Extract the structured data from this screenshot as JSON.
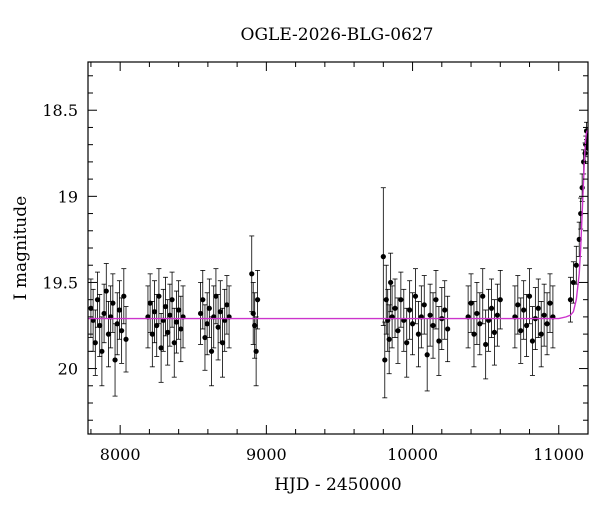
{
  "chart_data": {
    "type": "scatter",
    "title": "OGLE-2026-BLG-0627",
    "xlabel": "HJD - 2450000",
    "ylabel": "I magnitude",
    "xlim": [
      7780,
      11200
    ],
    "ylim": [
      20.38,
      18.22
    ],
    "y_inverted": true,
    "grid": false,
    "x_ticks": [
      {
        "value": 8000,
        "label": "8000"
      },
      {
        "value": 9000,
        "label": "9000"
      },
      {
        "value": 10000,
        "label": "10000"
      },
      {
        "value": 11000,
        "label": "11000"
      }
    ],
    "y_ticks": [
      {
        "value": 18.5,
        "label": "18.5"
      },
      {
        "value": 19,
        "label": "19"
      },
      {
        "value": 19.5,
        "label": "19.5"
      },
      {
        "value": 20,
        "label": "20"
      }
    ],
    "baseline_mag": 19.71,
    "model_color": "#cc33cc",
    "point_color": "#000000",
    "series": [
      {
        "type": "errorbar-scatter",
        "x": [
          7800,
          7815,
          7830,
          7845,
          7860,
          7875,
          7890,
          7905,
          7920,
          7935,
          7950,
          7965,
          7980,
          7995,
          8010,
          8025,
          8040,
          8190,
          8205,
          8220,
          8235,
          8250,
          8265,
          8280,
          8295,
          8310,
          8325,
          8340,
          8355,
          8370,
          8385,
          8400,
          8415,
          8430,
          8550,
          8565,
          8580,
          8595,
          8610,
          8625,
          8640,
          8655,
          8670,
          8685,
          8700,
          8715,
          8730,
          8745,
          8900,
          8910,
          8920,
          8930,
          8940,
          9800,
          9810,
          9820,
          9830,
          9840,
          9850,
          9860,
          9880,
          9900,
          9920,
          9940,
          9960,
          9980,
          10000,
          10020,
          10040,
          10060,
          10080,
          10100,
          10120,
          10140,
          10160,
          10180,
          10200,
          10220,
          10240,
          10380,
          10400,
          10420,
          10440,
          10460,
          10480,
          10500,
          10520,
          10540,
          10560,
          10580,
          10600,
          10700,
          10720,
          10740,
          10760,
          10780,
          10800,
          10820,
          10840,
          10860,
          10880,
          10900,
          10920,
          10940,
          10960,
          11080,
          11100,
          11120,
          11140,
          11150,
          11160,
          11170,
          11180,
          11185,
          11190,
          11195,
          11200
        ],
        "y": [
          19.65,
          19.72,
          19.85,
          19.6,
          19.75,
          19.9,
          19.68,
          19.55,
          19.8,
          19.7,
          19.62,
          19.95,
          19.74,
          19.66,
          19.78,
          19.58,
          19.83,
          19.7,
          19.62,
          19.8,
          19.67,
          19.75,
          19.58,
          19.88,
          19.72,
          19.64,
          19.79,
          19.69,
          19.6,
          19.85,
          19.73,
          19.66,
          19.77,
          19.7,
          19.68,
          19.6,
          19.82,
          19.74,
          19.65,
          19.9,
          19.7,
          19.58,
          19.76,
          19.67,
          19.85,
          19.72,
          19.63,
          19.7,
          19.45,
          19.68,
          19.75,
          19.9,
          19.6,
          19.35,
          19.95,
          19.6,
          19.72,
          19.83,
          19.5,
          19.7,
          19.65,
          19.78,
          19.6,
          19.72,
          19.85,
          19.66,
          19.74,
          19.58,
          19.8,
          19.7,
          19.63,
          19.92,
          19.69,
          19.75,
          19.6,
          19.84,
          19.71,
          19.66,
          19.77,
          19.7,
          19.62,
          19.8,
          19.68,
          19.74,
          19.58,
          19.86,
          19.72,
          19.65,
          19.79,
          19.69,
          19.6,
          19.7,
          19.63,
          19.78,
          19.66,
          19.75,
          19.58,
          19.84,
          19.71,
          19.65,
          19.8,
          19.69,
          19.74,
          19.62,
          19.7,
          19.6,
          19.5,
          19.4,
          19.25,
          19.1,
          18.95,
          18.8,
          18.75,
          18.7,
          18.62,
          18.68,
          18.72
        ],
        "yerr": [
          0.17,
          0.18,
          0.19,
          0.16,
          0.18,
          0.2,
          0.17,
          0.16,
          0.19,
          0.18,
          0.17,
          0.21,
          0.18,
          0.17,
          0.19,
          0.16,
          0.19,
          0.18,
          0.17,
          0.19,
          0.18,
          0.18,
          0.16,
          0.2,
          0.18,
          0.17,
          0.19,
          0.18,
          0.16,
          0.2,
          0.18,
          0.17,
          0.19,
          0.18,
          0.18,
          0.17,
          0.19,
          0.18,
          0.17,
          0.2,
          0.18,
          0.16,
          0.19,
          0.18,
          0.2,
          0.18,
          0.17,
          0.18,
          0.22,
          0.18,
          0.19,
          0.2,
          0.17,
          0.4,
          0.22,
          0.2,
          0.18,
          0.2,
          0.17,
          0.18,
          0.17,
          0.19,
          0.16,
          0.18,
          0.2,
          0.17,
          0.18,
          0.16,
          0.19,
          0.18,
          0.17,
          0.21,
          0.18,
          0.19,
          0.17,
          0.2,
          0.18,
          0.17,
          0.19,
          0.18,
          0.17,
          0.19,
          0.18,
          0.18,
          0.16,
          0.2,
          0.18,
          0.17,
          0.19,
          0.18,
          0.17,
          0.18,
          0.17,
          0.19,
          0.17,
          0.18,
          0.16,
          0.2,
          0.18,
          0.17,
          0.19,
          0.18,
          0.18,
          0.17,
          0.18,
          0.13,
          0.12,
          0.11,
          0.1,
          0.09,
          0.08,
          0.07,
          0.06,
          0.05,
          0.05,
          0.05,
          0.05
        ]
      },
      {
        "type": "model-line",
        "x": [
          7780,
          8000,
          8500,
          9000,
          9500,
          10000,
          10500,
          10900,
          11000,
          11050,
          11080,
          11100,
          11120,
          11140,
          11150,
          11160,
          11170,
          11175,
          11180,
          11185,
          11190,
          11195,
          11200
        ],
        "y": [
          19.71,
          19.71,
          19.71,
          19.71,
          19.71,
          19.71,
          19.71,
          19.71,
          19.71,
          19.7,
          19.69,
          19.67,
          19.6,
          19.45,
          19.3,
          19.1,
          18.9,
          18.8,
          18.72,
          18.66,
          18.63,
          18.62,
          18.63
        ]
      }
    ]
  }
}
